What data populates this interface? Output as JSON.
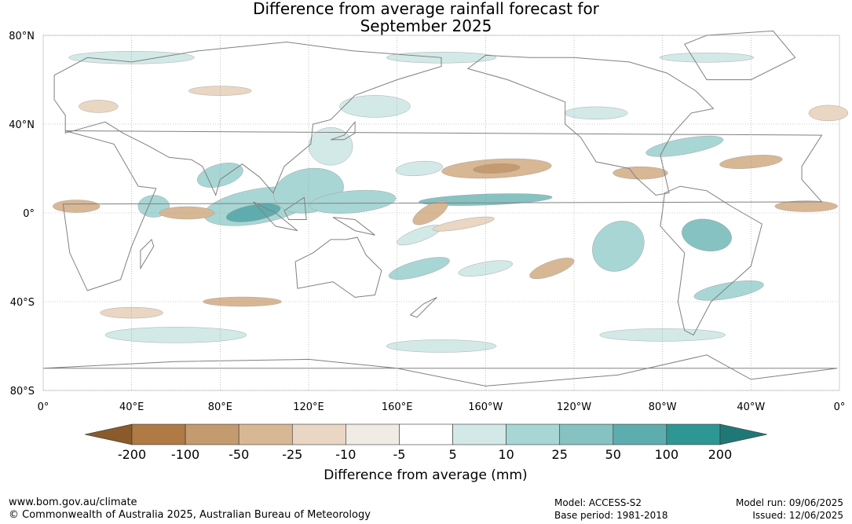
{
  "title": {
    "line1": "Difference from average rainfall forecast for",
    "line2": "September 2025"
  },
  "map": {
    "lat_labels": [
      "80°N",
      "40°N",
      "0°",
      "40°S",
      "80°S"
    ],
    "lon_labels": [
      "0°",
      "40°E",
      "80°E",
      "120°E",
      "160°E",
      "160°W",
      "120°W",
      "80°W",
      "40°W",
      "0°"
    ],
    "gridlines": true,
    "land_outline_color": "#808080"
  },
  "colorbar": {
    "title": "Difference from average (mm)",
    "tick_labels": [
      "-200",
      "-100",
      "-50",
      "-25",
      "-10",
      "-5",
      "5",
      "10",
      "25",
      "50",
      "100",
      "200"
    ],
    "colors": [
      "#8a5a2b",
      "#b07a44",
      "#c49a6f",
      "#d8b795",
      "#e9d6c3",
      "#f1ebe5",
      "#ffffff",
      "#d2e9e7",
      "#a8d6d4",
      "#86c2c1",
      "#5eadae",
      "#2f9793",
      "#1f7876"
    ]
  },
  "footer": {
    "url": "www.bom.gov.au/climate",
    "copyright": "© Commonwealth of Australia 2025, Australian Bureau of Meteorology",
    "model": "Model: ACCESS-S2",
    "base_period": "Base period: 1981-2018",
    "model_run": "Model run: 09/06/2025",
    "issued": "Issued: 12/06/2025"
  }
}
